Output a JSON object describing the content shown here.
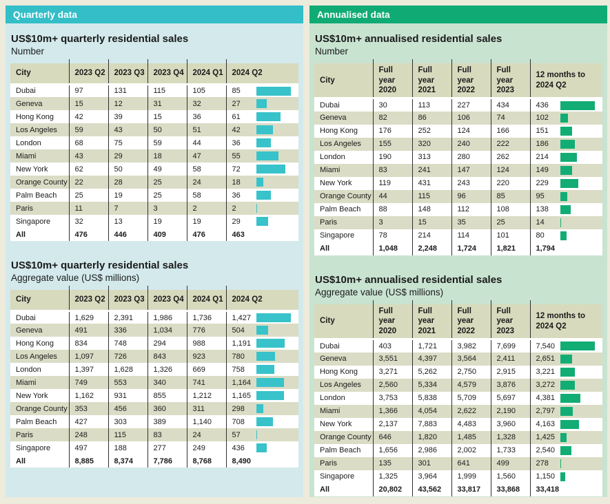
{
  "page": {
    "background": "#edebdc",
    "text_color": "#1a1a1a"
  },
  "panels": [
    {
      "title": "Quarterly data",
      "theme": {
        "band": "#33bec8",
        "panel_bg": "#d3e9ec",
        "bar": "#38c2ca",
        "header_bg": "#d7dabd",
        "stripe_bg": "#dadcc5"
      },
      "tables": [
        {
          "title": "US$10m+ quarterly residential sales",
          "subtitle": "Number",
          "columns": [
            "City",
            "2023 Q2",
            "2023 Q3",
            "2023 Q4",
            "2024 Q1",
            "2024 Q2"
          ],
          "rows": [
            {
              "city": "Dubai",
              "values": [
                "97",
                "131",
                "115",
                "105",
                "85"
              ]
            },
            {
              "city": "Geneva",
              "values": [
                "15",
                "12",
                "31",
                "32",
                "27"
              ]
            },
            {
              "city": "Hong Kong",
              "values": [
                "42",
                "39",
                "15",
                "36",
                "61"
              ]
            },
            {
              "city": "Los Angeles",
              "values": [
                "59",
                "43",
                "50",
                "51",
                "42"
              ]
            },
            {
              "city": "London",
              "values": [
                "68",
                "75",
                "59",
                "44",
                "36"
              ]
            },
            {
              "city": "Miami",
              "values": [
                "43",
                "29",
                "18",
                "47",
                "55"
              ]
            },
            {
              "city": "New York",
              "values": [
                "62",
                "50",
                "49",
                "58",
                "72"
              ]
            },
            {
              "city": "Orange County",
              "values": [
                "22",
                "28",
                "25",
                "24",
                "18"
              ]
            },
            {
              "city": "Palm Beach",
              "values": [
                "25",
                "19",
                "25",
                "58",
                "36"
              ]
            },
            {
              "city": "Paris",
              "values": [
                "11",
                "7",
                "3",
                "2",
                "2"
              ]
            },
            {
              "city": "Singapore",
              "values": [
                "32",
                "13",
                "19",
                "19",
                "29"
              ]
            },
            {
              "city": "All",
              "values": [
                "476",
                "446",
                "409",
                "476",
                "463"
              ],
              "total": true
            }
          ]
        },
        {
          "title": "US$10m+ quarterly residential sales",
          "subtitle": "Aggregate value (US$ millions)",
          "columns": [
            "City",
            "2023 Q2",
            "2023 Q3",
            "2023 Q4",
            "2024 Q1",
            "2024 Q2"
          ],
          "rows": [
            {
              "city": "Dubai",
              "values": [
                "1,629",
                "2,391",
                "1,986",
                "1,736",
                "1,427"
              ]
            },
            {
              "city": "Geneva",
              "values": [
                "491",
                "336",
                "1,034",
                "776",
                "504"
              ]
            },
            {
              "city": "Hong Kong",
              "values": [
                "834",
                "748",
                "294",
                "988",
                "1,191"
              ]
            },
            {
              "city": "Los Angeles",
              "values": [
                "1,097",
                "726",
                "843",
                "923",
                "780"
              ]
            },
            {
              "city": "London",
              "values": [
                "1,397",
                "1,628",
                "1,326",
                "669",
                "758"
              ]
            },
            {
              "city": "Miami",
              "values": [
                "749",
                "553",
                "340",
                "741",
                "1,164"
              ]
            },
            {
              "city": "New York",
              "values": [
                "1,162",
                "931",
                "855",
                "1,212",
                "1,165"
              ]
            },
            {
              "city": "Orange County",
              "values": [
                "353",
                "456",
                "360",
                "311",
                "298"
              ]
            },
            {
              "city": "Palm Beach",
              "values": [
                "427",
                "303",
                "389",
                "1,140",
                "708"
              ]
            },
            {
              "city": "Paris",
              "values": [
                "248",
                "115",
                "83",
                "24",
                "57"
              ]
            },
            {
              "city": "Singapore",
              "values": [
                "497",
                "188",
                "277",
                "249",
                "436"
              ]
            },
            {
              "city": "All",
              "values": [
                "8,885",
                "8,374",
                "7,786",
                "8,768",
                "8,490"
              ],
              "total": true
            }
          ]
        }
      ]
    },
    {
      "title": "Annualised data",
      "theme": {
        "band": "#10ab74",
        "panel_bg": "#c9e3d1",
        "bar": "#12ad74",
        "header_bg": "#d7dabd",
        "stripe_bg": "#dadcc5"
      },
      "tables": [
        {
          "title": "US$10m+ annualised residential sales",
          "subtitle": "Number",
          "columns": [
            "City",
            "Full year 2020",
            "Full year 2021",
            "Full year 2022",
            "Full year 2023",
            "12 months to 2024 Q2"
          ],
          "rows": [
            {
              "city": "Dubai",
              "values": [
                "30",
                "113",
                "227",
                "434",
                "436"
              ]
            },
            {
              "city": "Geneva",
              "values": [
                "82",
                "86",
                "106",
                "74",
                "102"
              ]
            },
            {
              "city": "Hong Kong",
              "values": [
                "176",
                "252",
                "124",
                "166",
                "151"
              ]
            },
            {
              "city": "Los Angeles",
              "values": [
                "155",
                "320",
                "240",
                "222",
                "186"
              ]
            },
            {
              "city": "London",
              "values": [
                "190",
                "313",
                "280",
                "262",
                "214"
              ]
            },
            {
              "city": "Miami",
              "values": [
                "83",
                "241",
                "147",
                "124",
                "149"
              ]
            },
            {
              "city": "New York",
              "values": [
                "119",
                "431",
                "243",
                "220",
                "229"
              ]
            },
            {
              "city": "Orange County",
              "values": [
                "44",
                "115",
                "96",
                "85",
                "95"
              ]
            },
            {
              "city": "Palm Beach",
              "values": [
                "88",
                "148",
                "112",
                "108",
                "138"
              ]
            },
            {
              "city": "Paris",
              "values": [
                "3",
                "15",
                "35",
                "25",
                "14"
              ]
            },
            {
              "city": "Singapore",
              "values": [
                "78",
                "214",
                "114",
                "101",
                "80"
              ]
            },
            {
              "city": "All",
              "values": [
                "1,048",
                "2,248",
                "1,724",
                "1,821",
                "1,794"
              ],
              "total": true
            }
          ]
        },
        {
          "title": "US$10m+ annualised residential sales",
          "subtitle": "Aggregate value (US$ millions)",
          "columns": [
            "City",
            "Full year 2020",
            "Full year 2021",
            "Full year 2022",
            "Full year 2023",
            "12 months to 2024 Q2"
          ],
          "rows": [
            {
              "city": "Dubai",
              "values": [
                "403",
                "1,721",
                "3,982",
                "7,699",
                "7,540"
              ]
            },
            {
              "city": "Geneva",
              "values": [
                "3,551",
                "4,397",
                "3,564",
                "2,411",
                "2,651"
              ]
            },
            {
              "city": "Hong Kong",
              "values": [
                "3,271",
                "5,262",
                "2,750",
                "2,915",
                "3,221"
              ]
            },
            {
              "city": "Los Angeles",
              "values": [
                "2,560",
                "5,334",
                "4,579",
                "3,876",
                "3,272"
              ]
            },
            {
              "city": "London",
              "values": [
                "3,753",
                "5,838",
                "5,709",
                "5,697",
                "4,381"
              ]
            },
            {
              "city": "Miami",
              "values": [
                "1,366",
                "4,054",
                "2,622",
                "2,190",
                "2,797"
              ]
            },
            {
              "city": "New York",
              "values": [
                "2,137",
                "7,883",
                "4,483",
                "3,960",
                "4,163"
              ]
            },
            {
              "city": "Orange County",
              "values": [
                "646",
                "1,820",
                "1,485",
                "1,328",
                "1,425"
              ]
            },
            {
              "city": "Palm Beach",
              "values": [
                "1,656",
                "2,986",
                "2,002",
                "1,733",
                "2,540"
              ]
            },
            {
              "city": "Paris",
              "values": [
                "135",
                "301",
                "641",
                "499",
                "278"
              ]
            },
            {
              "city": "Singapore",
              "values": [
                "1,325",
                "3,964",
                "1,999",
                "1,560",
                "1,150"
              ]
            },
            {
              "city": "All",
              "values": [
                "20,802",
                "43,562",
                "33,817",
                "33,868",
                "33,418"
              ],
              "total": true
            }
          ]
        }
      ]
    }
  ]
}
